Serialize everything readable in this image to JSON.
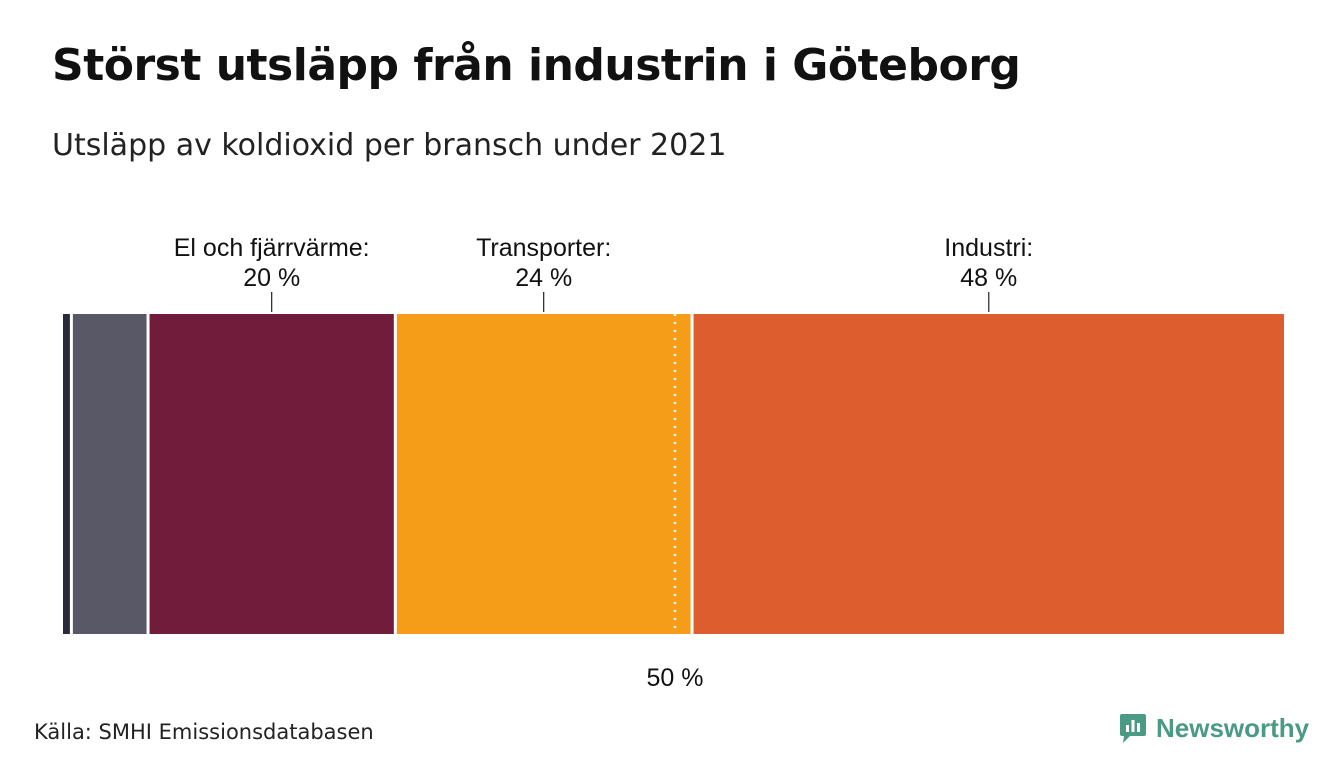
{
  "title": "Störst utsläpp från industrin i Göteborg",
  "subtitle": "Utsläpp av koldioxid per bransch under 2021",
  "source": "Källa: SMHI Emissionsdatabasen",
  "brand": {
    "name": "Newsworthy",
    "icon": "newsworthy-logo-icon",
    "color": "#4a9a86"
  },
  "chart_data": {
    "type": "bar",
    "orientation": "horizontal-stacked-100",
    "unit": "%",
    "segments": [
      {
        "name": "",
        "value": 0.8,
        "color": "#2a2a3a"
      },
      {
        "name": "",
        "value": 6.2,
        "color": "#585866"
      },
      {
        "name": "El och fjärrvärme:",
        "value": 20,
        "value_label": "20 %",
        "color": "#721c3c"
      },
      {
        "name": "Transporter:",
        "value": 24,
        "value_label": "24 %",
        "color": "#f59d19"
      },
      {
        "name": "Industri:",
        "value": 48,
        "value_label": "48 %",
        "color": "#de5d2e"
      }
    ],
    "reference_lines": [
      {
        "value": 50,
        "label": "50 %",
        "style": "dotted"
      }
    ],
    "xlim": [
      0,
      100
    ]
  }
}
